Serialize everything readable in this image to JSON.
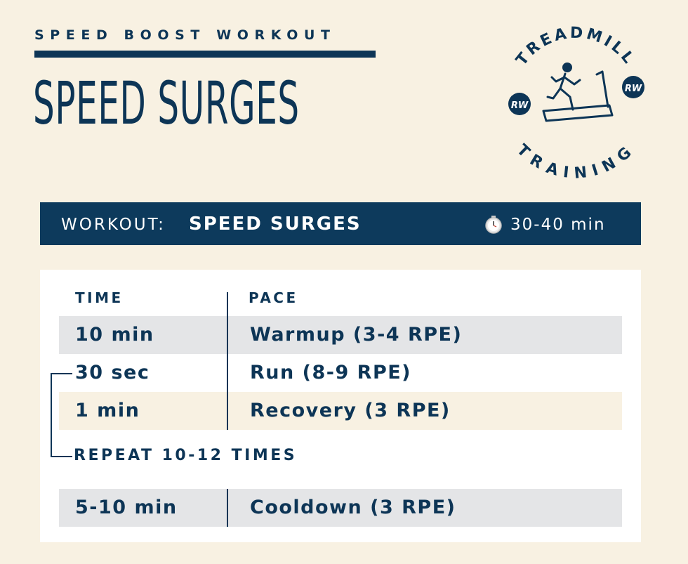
{
  "header": {
    "kicker": "SPEED BOOST WORKOUT",
    "title": "SPEED SURGES"
  },
  "badge": {
    "top_text": "TREADMILL",
    "bottom_text": "TRAINING",
    "left_logo": "RW",
    "right_logo": "RW",
    "icon": "treadmill-runner-icon"
  },
  "banner": {
    "label": "WORKOUT:",
    "name": "SPEED SURGES",
    "icon": "stopwatch-icon",
    "duration": "30-40 min"
  },
  "table": {
    "headers": {
      "time": "TIME",
      "pace": "PACE"
    },
    "rows": [
      {
        "time": "10 min",
        "pace": "Warmup (3-4 RPE)"
      },
      {
        "time": "30 sec",
        "pace": "Run (8-9 RPE)"
      },
      {
        "time": "1 min",
        "pace": "Recovery (3 RPE)"
      }
    ],
    "repeat_label": "REPEAT 10-12 TIMES",
    "final_row": {
      "time": "5-10 min",
      "pace": "Cooldown (3 RPE)"
    }
  },
  "colors": {
    "navy": "#0d3556",
    "background": "#f8f1e2",
    "row_gray": "#e4e5e7",
    "card": "#ffffff"
  }
}
